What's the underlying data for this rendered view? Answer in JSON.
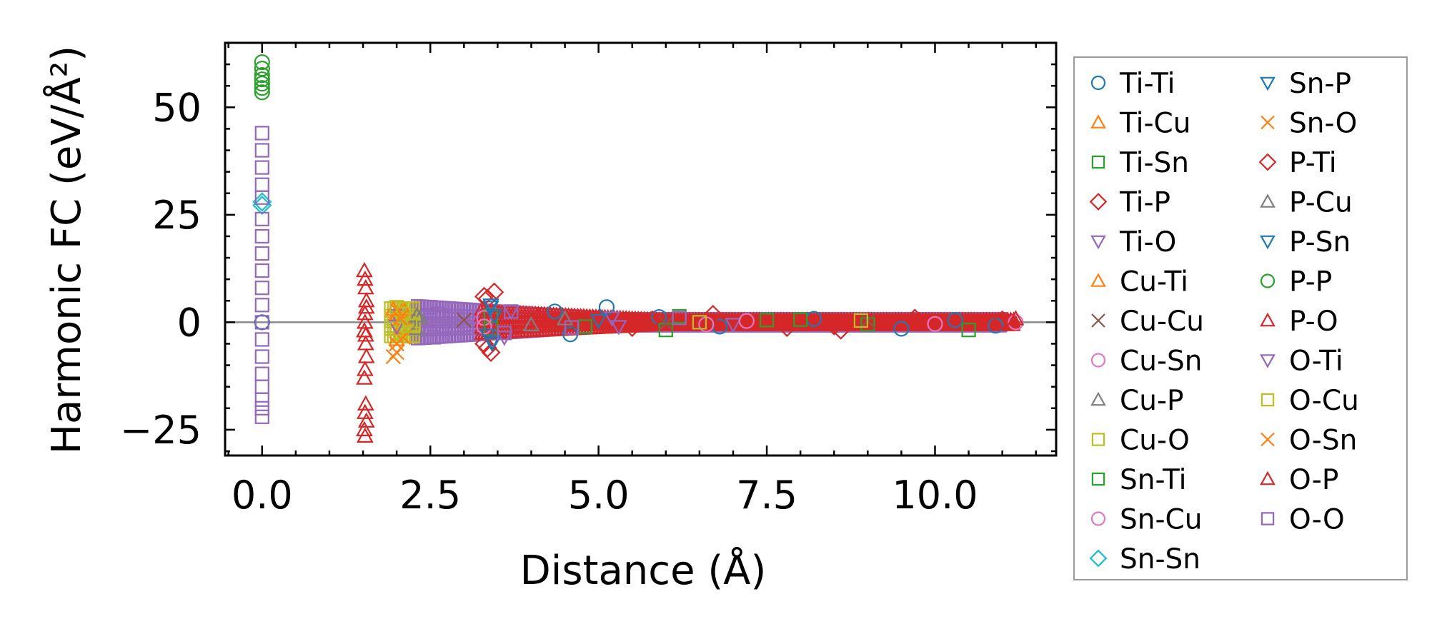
{
  "chart_data": {
    "type": "scatter",
    "title": "",
    "xlabel": "Distance (Å)",
    "ylabel": "Harmonic FC (eV/Å²)",
    "xlim": [
      -0.55,
      11.8
    ],
    "ylim": [
      -31,
      65
    ],
    "xticks": [
      0.0,
      2.5,
      5.0,
      7.5,
      10.0
    ],
    "xtick_labels": [
      "0.0",
      "2.5",
      "5.0",
      "7.5",
      "10.0"
    ],
    "yticks": [
      -25,
      0,
      25,
      50
    ],
    "ytick_labels": [
      "−25",
      "0",
      "25",
      "50"
    ],
    "zero_line": 0,
    "grid": false,
    "legend_position": "outside-right",
    "series": [
      {
        "name": "Ti-Ti",
        "color": "#1f77b4",
        "marker": "circle",
        "points": [
          [
            0.0,
            0
          ],
          [
            4.35,
            2.5
          ],
          [
            4.58,
            -2.8
          ],
          [
            5.12,
            3.5
          ],
          [
            5.9,
            1.2
          ],
          [
            6.8,
            -1.0
          ],
          [
            8.2,
            0.8
          ],
          [
            9.5,
            -1.5
          ],
          [
            10.3,
            0.5
          ],
          [
            10.9,
            -0.8
          ]
        ]
      },
      {
        "name": "Ti-Cu",
        "color": "#ff7f0e",
        "marker": "triangle-up",
        "points": [
          [
            2.0,
            2.0
          ],
          [
            2.05,
            -1.5
          ],
          [
            2.1,
            3.0
          ]
        ]
      },
      {
        "name": "Ti-Sn",
        "color": "#2ca02c",
        "marker": "square",
        "points": [
          [
            3.4,
            1.5
          ],
          [
            4.8,
            -1.0
          ],
          [
            6.0,
            -1.8
          ],
          [
            7.5,
            0.5
          ],
          [
            9.0,
            -0.5
          ],
          [
            10.5,
            -1.8
          ]
        ]
      },
      {
        "name": "Ti-P",
        "color": "#d62728",
        "marker": "diamond",
        "points": [
          [
            3.3,
            -5.0
          ],
          [
            3.35,
            5.5
          ],
          [
            3.4,
            -7.0
          ],
          [
            3.45,
            7.0
          ],
          [
            4.1,
            1.0
          ],
          [
            5.5,
            -1.2
          ],
          [
            6.7,
            1.8
          ],
          [
            7.8,
            -1.2
          ],
          [
            8.6,
            -1.8
          ],
          [
            9.7,
            0.9
          ],
          [
            11.0,
            0.5
          ]
        ]
      },
      {
        "name": "Ti-O",
        "color": "#9467bd",
        "marker": "triangle-down",
        "points": [
          [
            2.0,
            1.5
          ],
          [
            3.6,
            -3.5
          ],
          [
            5.2,
            1.0
          ],
          [
            7.0,
            -0.5
          ]
        ]
      },
      {
        "name": "Cu-Ti",
        "color": "#ff7f0e",
        "marker": "triangle-up",
        "points": [
          [
            1.95,
            3.0
          ],
          [
            2.0,
            -4.0
          ],
          [
            2.1,
            1.0
          ]
        ]
      },
      {
        "name": "Cu-Cu",
        "color": "#8c564b",
        "marker": "x",
        "points": [
          [
            3.0,
            0.5
          ],
          [
            6.0,
            -0.3
          ],
          [
            9.0,
            0.3
          ]
        ]
      },
      {
        "name": "Cu-Sn",
        "color": "#e377c2",
        "marker": "circle",
        "points": [
          [
            3.3,
            1.0
          ],
          [
            6.6,
            -0.5
          ],
          [
            11.2,
            0.0
          ]
        ]
      },
      {
        "name": "Cu-P",
        "color": "#7f7f7f",
        "marker": "triangle-up",
        "points": [
          [
            2.3,
            -1.5
          ],
          [
            2.35,
            1.0
          ],
          [
            4.5,
            0.8
          ]
        ]
      },
      {
        "name": "Cu-O",
        "color": "#bcbd22",
        "marker": "square",
        "points": [
          [
            2.0,
            3.5
          ],
          [
            2.05,
            -2.5
          ],
          [
            2.15,
            0.5
          ],
          [
            2.25,
            -0.5
          ],
          [
            6.5,
            0.0
          ],
          [
            8.9,
            0.4
          ]
        ]
      },
      {
        "name": "Sn-Ti",
        "color": "#2ca02c",
        "marker": "square",
        "points": [
          [
            3.4,
            -1.5
          ],
          [
            6.2,
            1.4
          ],
          [
            8.0,
            0.6
          ]
        ]
      },
      {
        "name": "Sn-Cu",
        "color": "#e377c2",
        "marker": "circle",
        "points": [
          [
            3.3,
            -1.0
          ],
          [
            7.2,
            0.3
          ],
          [
            10.0,
            -0.4
          ]
        ]
      },
      {
        "name": "Sn-Sn",
        "color": "#17becf",
        "marker": "diamond",
        "points": [
          [
            0.0,
            28.0
          ],
          [
            0.0,
            27.2
          ]
        ]
      },
      {
        "name": "Sn-P",
        "color": "#1f77b4",
        "marker": "triangle-down",
        "points": [
          [
            3.35,
            -3.0
          ],
          [
            3.4,
            3.5
          ],
          [
            3.42,
            -5.0
          ],
          [
            3.45,
            1.5
          ]
        ]
      },
      {
        "name": "Sn-O",
        "color": "#ff7f0e",
        "marker": "x",
        "points": [
          [
            1.95,
            -8.0
          ],
          [
            2.0,
            -7.0
          ],
          [
            2.02,
            2.5
          ],
          [
            2.1,
            -3.5
          ]
        ]
      },
      {
        "name": "P-Ti",
        "color": "#d62728",
        "marker": "diamond",
        "points": [
          [
            3.3,
            6.0
          ],
          [
            3.35,
            -6.0
          ],
          [
            5.8,
            0.5
          ],
          [
            8.5,
            -0.8
          ]
        ]
      },
      {
        "name": "P-Cu",
        "color": "#7f7f7f",
        "marker": "triangle-up",
        "points": [
          [
            2.3,
            1.5
          ],
          [
            4.0,
            -0.6
          ]
        ]
      },
      {
        "name": "P-Sn",
        "color": "#1f77b4",
        "marker": "triangle-down",
        "points": [
          [
            3.4,
            4.0
          ],
          [
            3.42,
            -4.5
          ],
          [
            5.0,
            0.4
          ]
        ]
      },
      {
        "name": "P-P",
        "color": "#2ca02c",
        "marker": "circle",
        "points": [
          [
            0.0,
            60.5
          ],
          [
            0.0,
            59.0
          ],
          [
            0.0,
            57.5
          ],
          [
            0.0,
            56.5
          ],
          [
            0.0,
            55.5
          ],
          [
            0.0,
            54.5
          ],
          [
            0.0,
            53.5
          ]
        ]
      },
      {
        "name": "P-O",
        "color": "#d62728",
        "marker": "triangle-up",
        "points": [
          [
            1.52,
            12.0
          ],
          [
            1.53,
            10.0
          ],
          [
            1.54,
            8.0
          ],
          [
            1.55,
            5.0
          ],
          [
            1.53,
            2.0
          ],
          [
            1.52,
            -2.0
          ],
          [
            1.54,
            -5.0
          ],
          [
            1.55,
            -8.0
          ],
          [
            1.53,
            -11.0
          ],
          [
            1.52,
            -13.0
          ],
          [
            1.54,
            -19.0
          ],
          [
            1.53,
            -21.0
          ],
          [
            1.55,
            -23.0
          ],
          [
            1.52,
            -25.0
          ],
          [
            1.53,
            -26.5
          ],
          [
            11.2,
            0.8
          ]
        ]
      },
      {
        "name": "O-Ti",
        "color": "#9467bd",
        "marker": "triangle-down",
        "points": [
          [
            2.0,
            -1.0
          ],
          [
            3.7,
            2.5
          ],
          [
            5.3,
            -1.0
          ]
        ]
      },
      {
        "name": "O-Cu",
        "color": "#bcbd22",
        "marker": "square",
        "points": [
          [
            2.0,
            -1.5
          ],
          [
            2.1,
            2.0
          ],
          [
            2.2,
            -0.8
          ]
        ]
      },
      {
        "name": "O-Sn",
        "color": "#ff7f0e",
        "marker": "x",
        "points": [
          [
            2.0,
            -5.0
          ],
          [
            2.05,
            1.0
          ]
        ]
      },
      {
        "name": "O-P",
        "color": "#d62728",
        "marker": "triangle-up",
        "points": [
          [
            1.53,
            0.0
          ],
          [
            1.54,
            -3.0
          ],
          [
            1.55,
            3.5
          ]
        ]
      },
      {
        "name": "O-O",
        "color": "#9467bd",
        "marker": "square",
        "points": [
          [
            0.0,
            44.0
          ],
          [
            0.0,
            40.0
          ],
          [
            0.0,
            36.0
          ],
          [
            0.0,
            32.0
          ],
          [
            0.0,
            29.0
          ],
          [
            0.0,
            24.0
          ],
          [
            0.0,
            20.0
          ],
          [
            0.0,
            16.0
          ],
          [
            0.0,
            12.0
          ],
          [
            0.0,
            8.0
          ],
          [
            0.0,
            4.0
          ],
          [
            0.0,
            0.0
          ],
          [
            0.0,
            -4.0
          ],
          [
            0.0,
            -8.0
          ],
          [
            0.0,
            -12.0
          ],
          [
            0.0,
            -15.0
          ],
          [
            0.0,
            -18.0
          ],
          [
            0.0,
            -20.0
          ],
          [
            0.0,
            -22.0
          ],
          [
            2.5,
            3.5
          ],
          [
            2.55,
            -3.5
          ],
          [
            2.6,
            2.0
          ],
          [
            3.6,
            -2.5
          ],
          [
            3.7,
            2.5
          ],
          [
            4.6,
            -1.2
          ],
          [
            6.2,
            1.0
          ]
        ]
      }
    ],
    "dense_bands": [
      {
        "name": "O-O",
        "color": "#9467bd",
        "marker": "square",
        "x_range": [
          2.3,
          11.0
        ],
        "half_amplitude": [
          4.0,
          1.0
        ]
      },
      {
        "name": "P-O",
        "color": "#d62728",
        "marker": "triangle-up",
        "x_range": [
          3.25,
          11.2
        ],
        "half_amplitude": [
          2.8,
          0.8
        ]
      },
      {
        "name": "Cu-O",
        "color": "#bcbd22",
        "marker": "square",
        "x_range": [
          1.9,
          2.3
        ],
        "half_amplitude": [
          3.5,
          3.5
        ]
      }
    ]
  }
}
